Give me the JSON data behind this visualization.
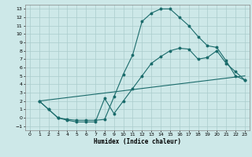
{
  "xlabel": "Humidex (Indice chaleur)",
  "xlim": [
    -0.5,
    23.5
  ],
  "ylim": [
    -1.5,
    13.5
  ],
  "xticks": [
    0,
    1,
    2,
    3,
    4,
    5,
    6,
    7,
    8,
    9,
    10,
    11,
    12,
    13,
    14,
    15,
    16,
    17,
    18,
    19,
    20,
    21,
    22,
    23
  ],
  "yticks": [
    -1,
    0,
    1,
    2,
    3,
    4,
    5,
    6,
    7,
    8,
    9,
    10,
    11,
    12,
    13
  ],
  "bg_color": "#cde8e8",
  "grid_color": "#aacccc",
  "line_color": "#1a6b6b",
  "line1_x": [
    1,
    2,
    3,
    4,
    5,
    6,
    7,
    8,
    9,
    10,
    11,
    12,
    13,
    14,
    15,
    16,
    17,
    18,
    19,
    20,
    21,
    22,
    23
  ],
  "line1_y": [
    2.0,
    1.0,
    0.0,
    -0.2,
    -0.3,
    -0.3,
    -0.3,
    -0.2,
    2.5,
    5.2,
    7.5,
    11.5,
    12.5,
    13.0,
    13.0,
    12.0,
    11.0,
    9.7,
    8.6,
    8.4,
    6.8,
    5.0,
    4.5
  ],
  "line2_x": [
    1,
    2,
    3,
    4,
    5,
    6,
    7,
    8,
    9,
    10,
    11,
    12,
    13,
    14,
    15,
    16,
    17,
    18,
    19,
    20,
    21,
    22,
    23
  ],
  "line2_y": [
    2.0,
    1.0,
    0.0,
    -0.3,
    -0.5,
    -0.5,
    -0.5,
    2.3,
    0.5,
    2.0,
    3.5,
    5.0,
    6.5,
    7.3,
    8.0,
    8.3,
    8.2,
    7.0,
    7.2,
    8.0,
    6.5,
    5.5,
    4.5
  ],
  "line3_x": [
    1,
    23
  ],
  "line3_y": [
    2.0,
    5.0
  ]
}
